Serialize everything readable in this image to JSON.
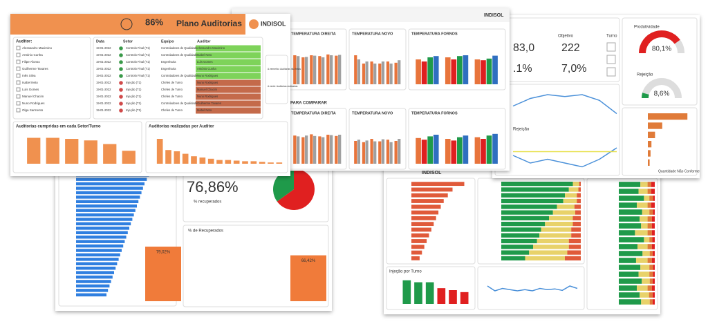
{
  "recovery_dashboard": {
    "ranking": {
      "values": [
        96,
        93,
        90,
        88,
        86,
        84,
        82,
        80,
        78,
        76,
        74,
        72,
        70,
        68,
        66,
        64,
        62,
        60,
        58,
        56,
        54,
        52,
        50,
        48,
        46,
        44,
        42,
        40
      ],
      "xlim": [
        0,
        100
      ],
      "color": "#2f7fe0"
    },
    "kpi": "76,86%",
    "kpi_label": "% recuperados",
    "pie": {
      "values": [
        65,
        35
      ],
      "colors": [
        "#e02020",
        "#1f9a4a"
      ]
    },
    "recovered": {
      "title": "% de Recuperados",
      "values": [
        79.02,
        66.42
      ],
      "value_labels": [
        "79,02%",
        "66,42%"
      ],
      "ylim": [
        0,
        100
      ],
      "color": "#f07b3a"
    }
  },
  "injection_dashboard": {
    "brand": "INDISOL",
    "ranking": {
      "values": [
        90,
        70,
        62,
        55,
        50,
        46,
        42,
        38,
        34,
        30,
        26,
        22,
        18,
        14
      ],
      "xlim": [
        0,
        100
      ],
      "color": "#e05a3a"
    },
    "stacked_a": {
      "colors": [
        "#1f9a4a",
        "#e8d26a",
        "#e05a3a"
      ],
      "xlim": [
        0,
        100
      ],
      "rows": [
        [
          90,
          8,
          2
        ],
        [
          85,
          12,
          3
        ],
        [
          80,
          15,
          5
        ],
        [
          78,
          17,
          5
        ],
        [
          70,
          22,
          8
        ],
        [
          65,
          28,
          7
        ],
        [
          60,
          30,
          10
        ],
        [
          55,
          35,
          10
        ],
        [
          50,
          38,
          12
        ],
        [
          48,
          40,
          12
        ],
        [
          45,
          40,
          15
        ],
        [
          40,
          45,
          15
        ],
        [
          35,
          48,
          17
        ],
        [
          30,
          50,
          20
        ]
      ]
    },
    "stacked_b": {
      "colors": [
        "#1f9a4a",
        "#e8d26a",
        "#e07b39",
        "#e02020"
      ],
      "xlim": [
        0,
        100
      ],
      "rows": [
        [
          60,
          20,
          10,
          10
        ],
        [
          55,
          25,
          10,
          10
        ],
        [
          70,
          15,
          10,
          5
        ],
        [
          50,
          30,
          10,
          10
        ],
        [
          65,
          20,
          10,
          5
        ],
        [
          58,
          22,
          12,
          8
        ],
        [
          62,
          18,
          12,
          8
        ],
        [
          45,
          35,
          12,
          8
        ],
        [
          70,
          15,
          8,
          7
        ],
        [
          52,
          28,
          12,
          8
        ],
        [
          66,
          20,
          8,
          6
        ],
        [
          48,
          32,
          12,
          8
        ],
        [
          60,
          25,
          10,
          5
        ],
        [
          55,
          30,
          10,
          5
        ],
        [
          64,
          22,
          8,
          6
        ],
        [
          50,
          30,
          12,
          8
        ],
        [
          58,
          26,
          10,
          6
        ],
        [
          62,
          24,
          8,
          6
        ]
      ]
    },
    "shift_chart": {
      "title": "Injeção por Turno",
      "values": [
        6,
        5.5,
        5.5,
        4,
        3.5,
        3
      ],
      "colors": [
        "#1f9a4a",
        "#1f9a4a",
        "#1f9a4a",
        "#e02020",
        "#e02020",
        "#e02020"
      ],
      "ylim": [
        0,
        7
      ]
    },
    "trend": {
      "ylim": [
        0,
        10
      ],
      "series": [
        {
          "color": "#4a90d9",
          "values": [
            6,
            4,
            5,
            4.5,
            4,
            4.5,
            4,
            5,
            4.5,
            4.8,
            4.2,
            6,
            5
          ]
        }
      ]
    }
  },
  "production_dashboard": {
    "objective_label": "Objetivo",
    "kpis": [
      "83,0",
      "222",
      ".1%",
      "7,0%"
    ],
    "turno_label": "Turno",
    "gauges": [
      {
        "title": "Produtividade",
        "value": 80.1,
        "label": "80,1%",
        "color": "#e02020",
        "lim": [
          0,
          100
        ]
      },
      {
        "title": "Rejeição",
        "value": 8.6,
        "label": "8,6%",
        "color": "#1f9a4a",
        "lim": [
          0,
          100
        ]
      }
    ],
    "trend": {
      "ylim": [
        0,
        10
      ],
      "series": [
        {
          "color": "#4a90d9",
          "values": [
            5,
            7,
            8,
            7.5,
            8,
            6.5,
            3
          ]
        }
      ]
    },
    "reject_trend": {
      "title": "Rejeição",
      "ylim": [
        0,
        10
      ],
      "series": [
        {
          "color": "#4a90d9",
          "values": [
            4,
            2,
            3,
            2,
            1,
            3,
            6
          ]
        },
        {
          "color": "#e8e04a",
          "values": [
            5,
            5,
            5,
            5,
            5,
            5,
            5
          ]
        }
      ]
    },
    "nonconforming": {
      "title": "Quantidade Não Conforme",
      "values": [
        22,
        8,
        4,
        2,
        1.5,
        1
      ],
      "xlim": [
        0,
        25
      ],
      "color": "#e07b39"
    }
  },
  "temperature_dashboard": {
    "brand": "INDISOL",
    "compare_label": "PARA COMPARAR",
    "charts": [
      {
        "title": "TEMPERATURA DIREITA",
        "ylim": [
          0,
          10
        ],
        "series": [
          {
            "color": "#e8743b",
            "values": [
              7,
              6.5,
              7,
              6.8,
              7.2,
              6.9
            ]
          },
          {
            "color": "#a0a0a0",
            "values": [
              6.8,
              6.6,
              6.9,
              6.5,
              7,
              7.1
            ]
          }
        ]
      },
      {
        "title": "TEMPERATURA NOVO",
        "ylim": [
          0,
          10
        ],
        "series": [
          {
            "color": "#e8743b",
            "values": [
              7,
              5,
              5.5,
              5,
              5.5,
              5.2
            ]
          },
          {
            "color": "#a0a0a0",
            "values": [
              6,
              5.5,
              5,
              5.5,
              5,
              5.8
            ]
          }
        ]
      },
      {
        "title": "TEMPERATURA FORNOS",
        "ylim": [
          0,
          10
        ],
        "series": [
          {
            "color": "#e8743b",
            "values": [
              6,
              6.5,
              6
            ]
          },
          {
            "color": "#e02020",
            "values": [
              5.5,
              6,
              5.8
            ]
          },
          {
            "color": "#1f9a4a",
            "values": [
              6.5,
              6.8,
              6.2
            ]
          },
          {
            "color": "#2f6fc0",
            "values": [
              6.8,
              7,
              6.9
            ]
          }
        ]
      },
      {
        "title": "TEMPERATURA DIREITA",
        "ylim": [
          0,
          10
        ],
        "series": [
          {
            "color": "#e8743b",
            "values": [
              6.8,
              6.4,
              7.1,
              6.6,
              7,
              6.7
            ]
          },
          {
            "color": "#a0a0a0",
            "values": [
              6.6,
              6.8,
              6.7,
              6.4,
              6.9,
              7
            ]
          }
        ]
      },
      {
        "title": "TEMPERATURA NOVO",
        "ylim": [
          0,
          10
        ],
        "series": [
          {
            "color": "#e8743b",
            "values": [
              5.5,
              5.2,
              6,
              5.4,
              5.8,
              5.5
            ]
          },
          {
            "color": "#a0a0a0",
            "values": [
              5.8,
              5.6,
              5.4,
              5.9,
              5.2,
              6
            ]
          }
        ]
      },
      {
        "title": "TEMPERATURA FORNOS",
        "ylim": [
          0,
          10
        ],
        "series": [
          {
            "color": "#e8743b",
            "values": [
              6.2,
              6,
              6.4
            ]
          },
          {
            "color": "#e02020",
            "values": [
              5.8,
              5.6,
              6
            ]
          },
          {
            "color": "#1f9a4a",
            "values": [
              6.6,
              6.4,
              6.8
            ]
          },
          {
            "color": "#2f6fc0",
            "values": [
              7,
              6.8,
              7.2
            ]
          }
        ]
      }
    ]
  },
  "audit_dashboard": {
    "kpi": "86%",
    "title": "Plano Auditorias",
    "brand": "INDISOL",
    "filter_label": "Auditor:",
    "auditors": [
      "Alessandro Maximino",
      "António Cunha",
      "Filipe Afonso",
      "Guilherme Tavares",
      "Inês Silva",
      "Isabel Neto",
      "Luís Gomes",
      "Manuel Chacim",
      "Nuno Rodrigues",
      "Olga Sarmento"
    ],
    "table": {
      "columns": [
        "Data",
        "Setor",
        "Equipo",
        "Auditor"
      ],
      "rows": [
        [
          "19-01-2022",
          "Controlo Final (T1)",
          "Controladores de Qualidade",
          "Alessandro Maximino"
        ],
        [
          "19-01-2022",
          "Controlo Final (T1)",
          "Controladores de Qualidade",
          "Isabel Neto"
        ],
        [
          "19-01-2022",
          "Controlo Final (T1)",
          "Engenharia",
          "Luís Gomes"
        ],
        [
          "19-01-2022",
          "Controlo Final (T1)",
          "Engenharia",
          "António Cunha"
        ],
        [
          "19-01-2022",
          "Controlo Final (T1)",
          "Controladores de Qualidade",
          "Nuno Rodrigues"
        ],
        [
          "19-01-2022",
          "Injeção (T1)",
          "Chefes de Turno",
          "Nuno Rodrigues"
        ],
        [
          "19-01-2022",
          "Injeção (T1)",
          "Chefes de Turno",
          "Manuel Chacim"
        ],
        [
          "19-01-2022",
          "Injeção (T1)",
          "Chefes de Turno",
          "Nuno Rodrigues"
        ],
        [
          "19-01-2022",
          "Injeção (T1)",
          "Controladores de Qualidade",
          "Guilherme Tavares"
        ],
        [
          "19-01-2022",
          "Injeção (T1)",
          "Chefes de Turno",
          "Isabel Neto"
        ]
      ],
      "row_status": [
        "ok",
        "ok",
        "ok",
        "ok",
        "ok",
        "late",
        "late",
        "late",
        "late",
        "late"
      ]
    },
    "legend": [
      "A vermelho: Auditorias não feitas",
      "A verde: Auditorias realizadas"
    ],
    "sector_chart": {
      "title": "Auditorias cumpridas em cada Setor/Turno",
      "values": [
        5,
        5,
        4.8,
        4.5,
        3.8,
        2.5
      ],
      "ylim": [
        0,
        6
      ],
      "color": "#f0914f"
    },
    "auditor_chart": {
      "title": "Auditorias realizadas por Auditor",
      "values": [
        20,
        11,
        10,
        8,
        6,
        5,
        4,
        3,
        3,
        2.5,
        2,
        2,
        1.5,
        1,
        1
      ],
      "ylim": [
        0,
        25
      ],
      "color": "#f0914f"
    }
  }
}
